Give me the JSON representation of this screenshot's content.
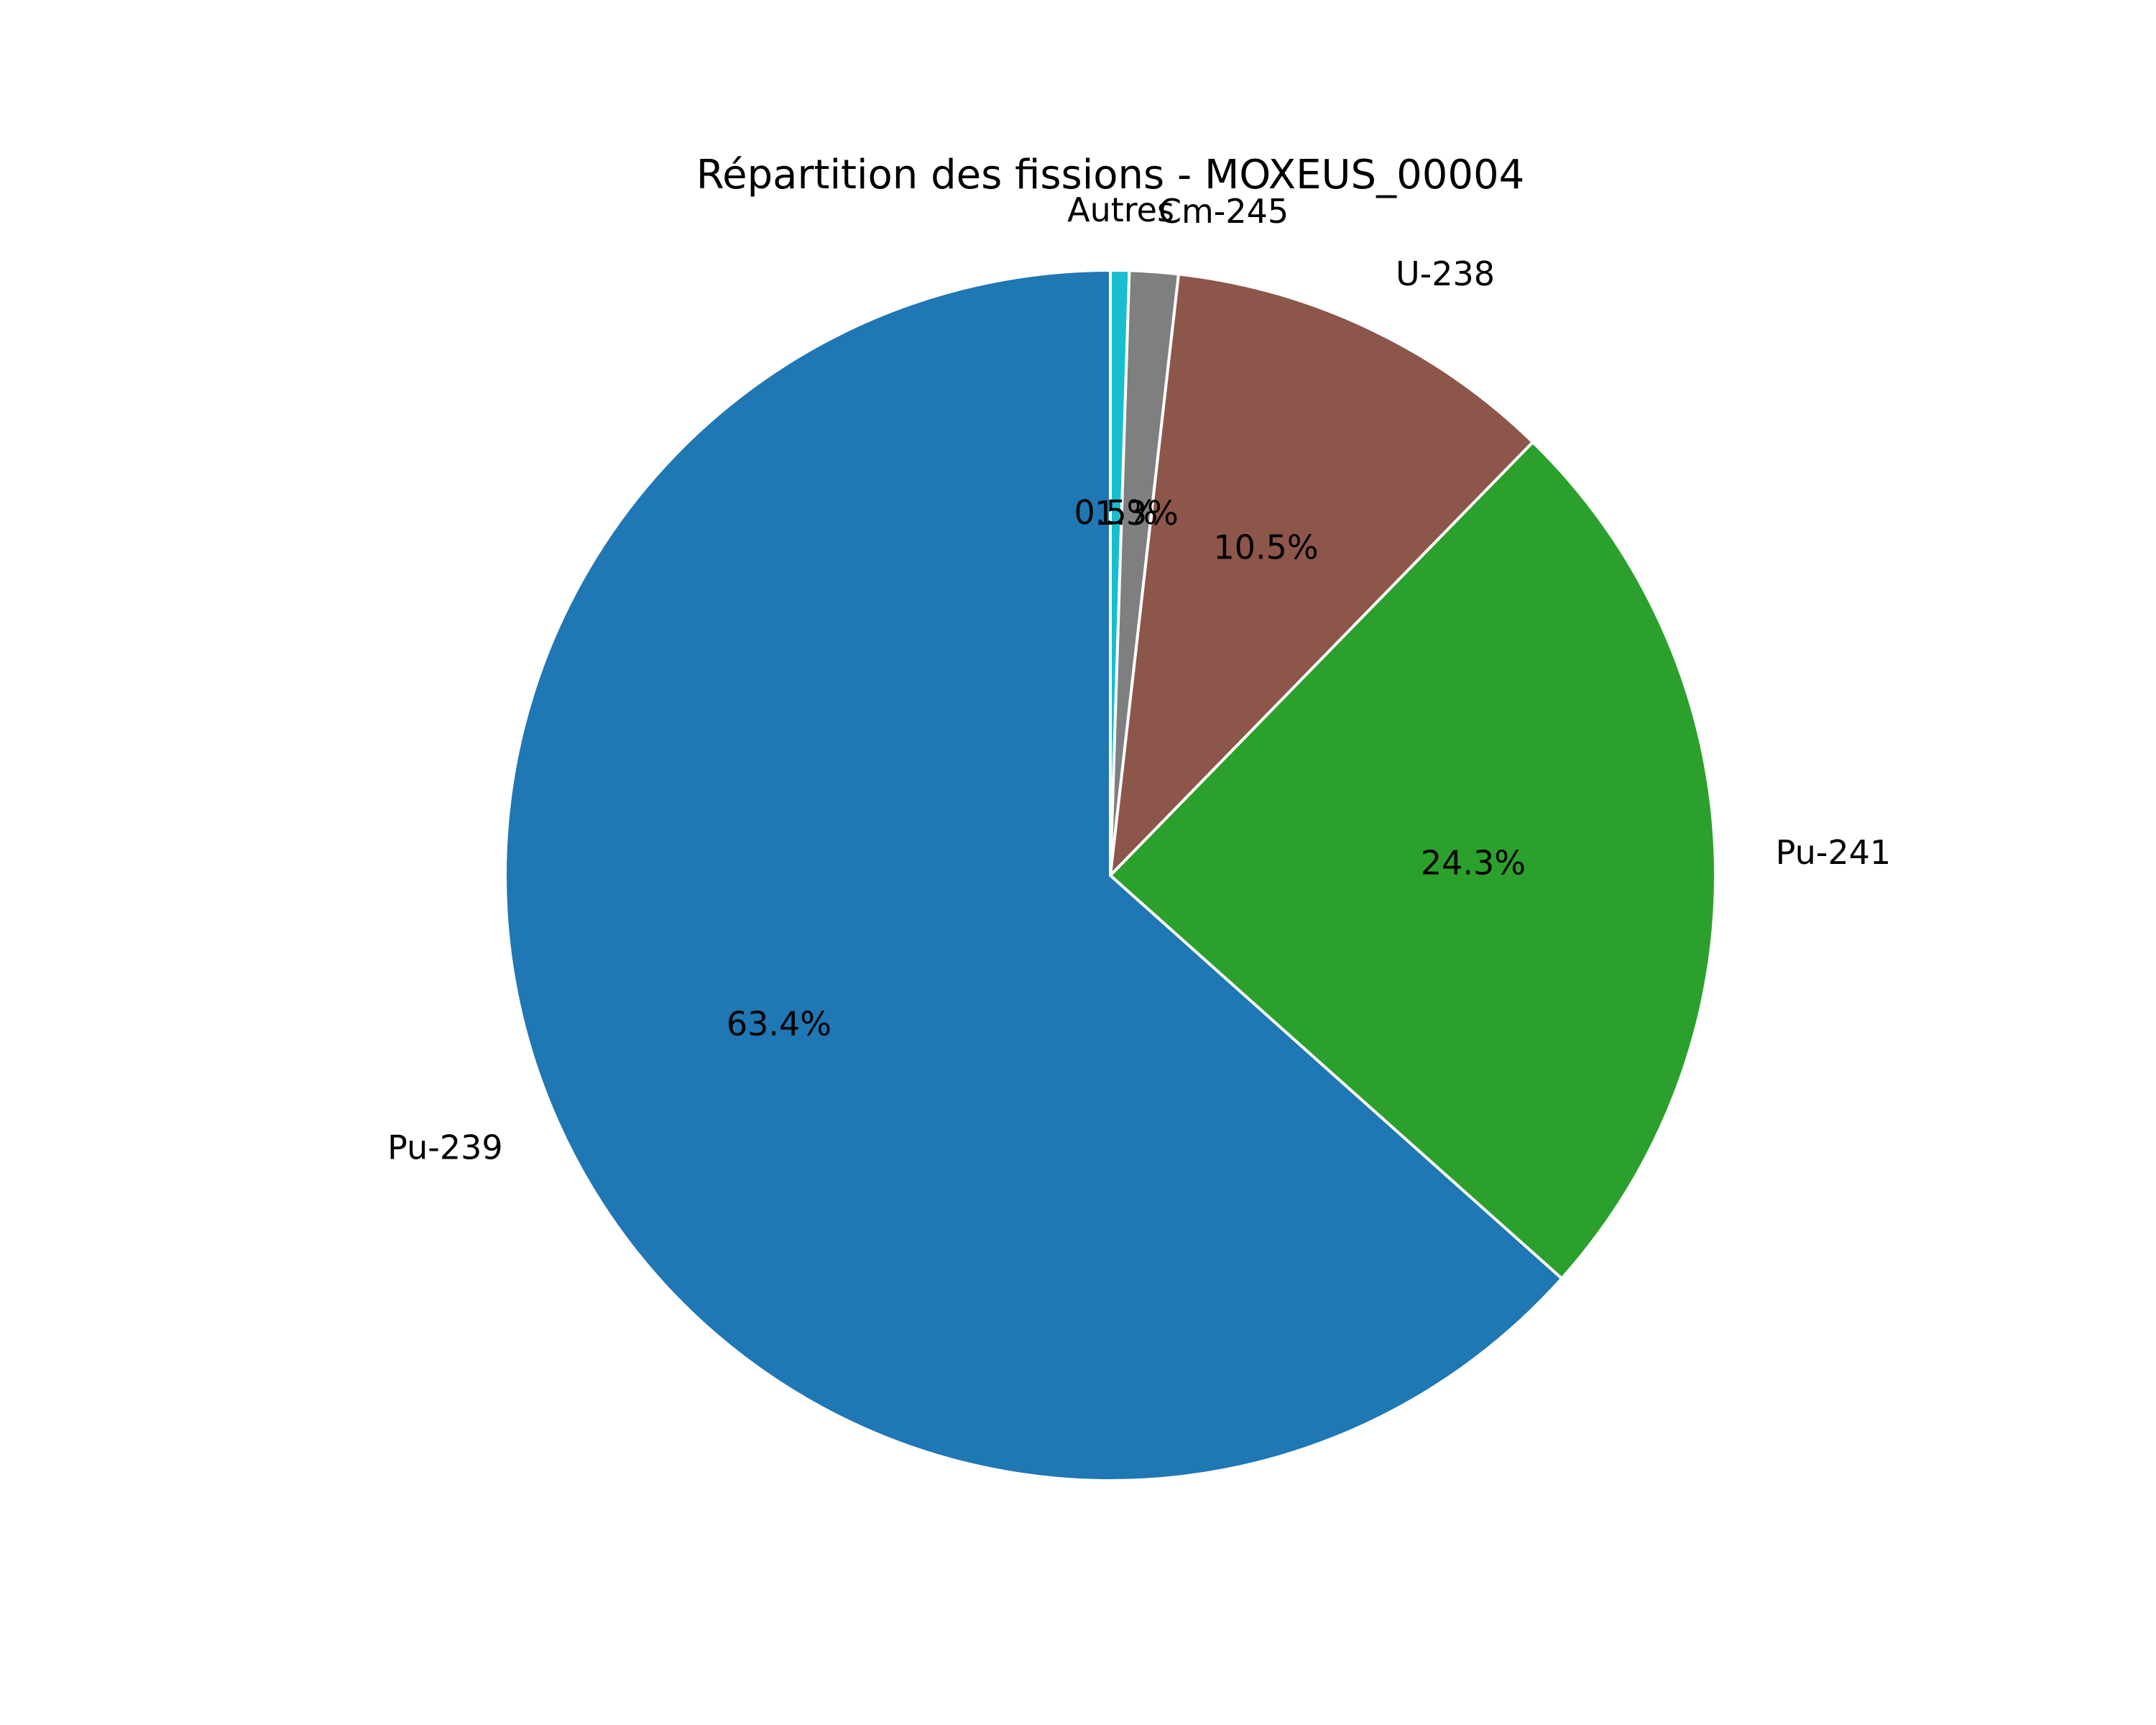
{
  "chart_data": {
    "type": "pie",
    "title": "Répartition des fissions - MOXEUS_00004",
    "start_angle_deg": 90,
    "direction": "clockwise",
    "slices": [
      {
        "label": "Autres",
        "value": 0.5,
        "pct_label": "0.5%",
        "color": "#17becf"
      },
      {
        "label": "Cm-245",
        "value": 1.3,
        "pct_label": "1.3%",
        "color": "#7f7f7f"
      },
      {
        "label": "U-238",
        "value": 10.5,
        "pct_label": "10.5%",
        "color": "#8c564b"
      },
      {
        "label": "Pu-241",
        "value": 24.3,
        "pct_label": "24.3%",
        "color": "#2ca02c"
      },
      {
        "label": "Pu-239",
        "value": 63.4,
        "pct_label": "63.4%",
        "color": "#1f77b4"
      }
    ]
  }
}
